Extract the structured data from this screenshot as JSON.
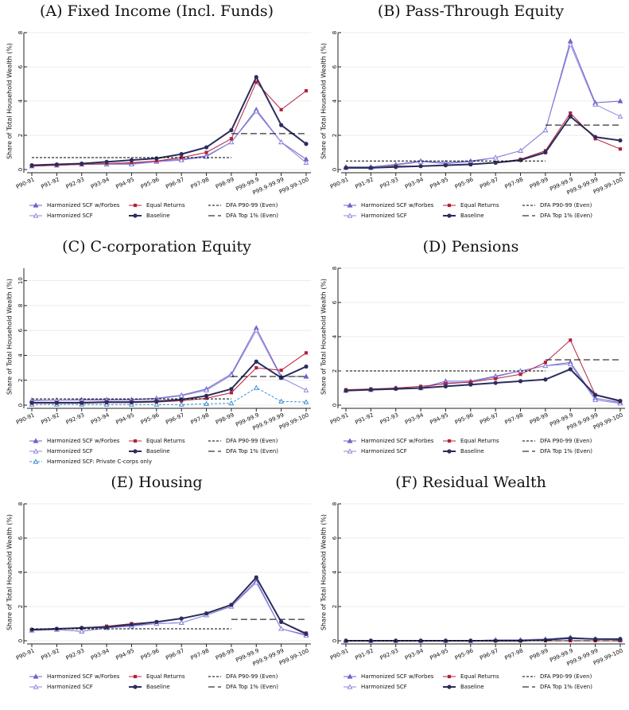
{
  "chart_data": [
    {
      "type": "line",
      "title": "(A) Fixed Income (Incl. Funds)",
      "y_label": "Share of Total Household Wealth (%)",
      "categories": [
        "P90-91",
        "P91-92",
        "P92-93",
        "P93-94",
        "P94-95",
        "P95-96",
        "P96-97",
        "P97-98",
        "P98-99",
        "P99-99.9",
        "P99.9-99.99",
        "P99.99-100"
      ],
      "ylim": [
        0,
        8
      ],
      "yticks": [
        0,
        2,
        4,
        6,
        8
      ],
      "grid": true,
      "series": [
        {
          "name": "Harmonized SCF w/Forbes",
          "color": "#6b63c9",
          "marker": "triangle",
          "values": [
            0.2,
            0.25,
            0.3,
            0.3,
            0.35,
            0.5,
            0.6,
            0.8,
            1.6,
            3.5,
            1.6,
            0.6
          ]
        },
        {
          "name": "Harmonized SCF",
          "color": "#8f86e0",
          "marker": "triangle-open",
          "values": [
            0.2,
            0.25,
            0.3,
            0.3,
            0.3,
            0.45,
            0.55,
            0.75,
            1.6,
            3.4,
            1.6,
            0.4
          ]
        },
        {
          "name": "Equal Returns",
          "color": "#b3213b",
          "marker": "square",
          "values": [
            0.2,
            0.25,
            0.3,
            0.35,
            0.4,
            0.5,
            0.7,
            1.0,
            1.8,
            5.1,
            3.5,
            4.6
          ]
        },
        {
          "name": "Baseline",
          "color": "#2b2d5c",
          "marker": "circle",
          "values": [
            0.25,
            0.3,
            0.35,
            0.45,
            0.55,
            0.65,
            0.9,
            1.3,
            2.3,
            5.4,
            2.6,
            1.5
          ]
        },
        {
          "name": "DFA P90-99 (Even)",
          "color": "#000000",
          "marker": "none",
          "dash": "3,2",
          "values": [
            0.7,
            0.7,
            0.7,
            0.7,
            0.7,
            0.7,
            0.7,
            0.7,
            0.7,
            null,
            null,
            null
          ]
        },
        {
          "name": "DFA Top 1% (Even)",
          "color": "#000000",
          "marker": "none",
          "dash": "8,4",
          "values": [
            null,
            null,
            null,
            null,
            null,
            null,
            null,
            null,
            2.1,
            2.1,
            2.1,
            2.1
          ]
        }
      ]
    },
    {
      "type": "line",
      "title": "(B) Pass-Through Equity",
      "y_label": "Share of Total Household Wealth (%)",
      "categories": [
        "P90-91",
        "P91-92",
        "P92-93",
        "P93-94",
        "P94-95",
        "P95-96",
        "P96-97",
        "P97-98",
        "P98-99",
        "P99-99.9",
        "P99.9-99.99",
        "P99.99-100"
      ],
      "ylim": [
        0,
        8
      ],
      "yticks": [
        0,
        2,
        4,
        6,
        8
      ],
      "grid": true,
      "series": [
        {
          "name": "Harmonized SCF w/Forbes",
          "color": "#6b63c9",
          "marker": "triangle",
          "values": [
            0.15,
            0.15,
            0.3,
            0.5,
            0.4,
            0.5,
            0.7,
            1.1,
            2.3,
            7.5,
            3.9,
            4.0
          ]
        },
        {
          "name": "Harmonized SCF",
          "color": "#8f86e0",
          "marker": "triangle-open",
          "values": [
            0.1,
            0.1,
            0.25,
            0.45,
            0.35,
            0.45,
            0.7,
            1.1,
            2.3,
            7.3,
            3.8,
            3.1
          ]
        },
        {
          "name": "Equal Returns",
          "color": "#b3213b",
          "marker": "square",
          "values": [
            0.1,
            0.1,
            0.2,
            0.2,
            0.25,
            0.3,
            0.4,
            0.6,
            1.1,
            3.3,
            1.8,
            1.2
          ]
        },
        {
          "name": "Baseline",
          "color": "#2b2d5c",
          "marker": "circle",
          "values": [
            0.1,
            0.1,
            0.15,
            0.2,
            0.25,
            0.3,
            0.4,
            0.55,
            1.0,
            3.1,
            1.9,
            1.7
          ]
        },
        {
          "name": "DFA P90-99 (Even)",
          "color": "#000000",
          "marker": "none",
          "dash": "3,2",
          "values": [
            0.5,
            0.5,
            0.5,
            0.5,
            0.5,
            0.5,
            0.5,
            0.5,
            0.5,
            null,
            null,
            null
          ]
        },
        {
          "name": "DFA Top 1% (Even)",
          "color": "#000000",
          "marker": "none",
          "dash": "8,4",
          "values": [
            null,
            null,
            null,
            null,
            null,
            null,
            null,
            null,
            2.6,
            2.6,
            2.6,
            2.6
          ]
        }
      ]
    },
    {
      "type": "line",
      "title": "(C) C-corporation Equity",
      "y_label": "Share of Total Household Wealth (%)",
      "categories": [
        "P90-91",
        "P91-92",
        "P92-93",
        "P93-94",
        "P94-95",
        "P95-96",
        "P96-97",
        "P97-98",
        "P98-99",
        "P99-99.9",
        "P99.9-99.99",
        "P99.99-100"
      ],
      "ylim": [
        0,
        11
      ],
      "yticks": [
        0,
        2,
        4,
        6,
        8,
        10
      ],
      "grid": true,
      "series": [
        {
          "name": "Harmonized SCF w/Forbes",
          "color": "#6b63c9",
          "marker": "triangle",
          "values": [
            0.4,
            0.4,
            0.45,
            0.45,
            0.45,
            0.55,
            0.8,
            1.3,
            2.5,
            6.2,
            2.3,
            2.3
          ]
        },
        {
          "name": "Harmonized SCF",
          "color": "#8f86e0",
          "marker": "triangle-open",
          "values": [
            0.35,
            0.4,
            0.4,
            0.4,
            0.4,
            0.5,
            0.75,
            1.2,
            2.4,
            6.0,
            2.2,
            1.2
          ]
        },
        {
          "name": "Harmonized SCF: Private C-corps only",
          "color": "#3b8fd4",
          "marker": "triangle-open",
          "dash": "3,2",
          "values": [
            0.05,
            0.05,
            0.05,
            0.05,
            0.05,
            0.05,
            0.05,
            0.1,
            0.15,
            1.4,
            0.3,
            0.25
          ]
        },
        {
          "name": "Equal Returns",
          "color": "#b3213b",
          "marker": "square",
          "values": [
            0.15,
            0.15,
            0.15,
            0.2,
            0.2,
            0.25,
            0.35,
            0.55,
            1.0,
            3.0,
            2.8,
            4.2
          ]
        },
        {
          "name": "Baseline",
          "color": "#2b2d5c",
          "marker": "circle",
          "values": [
            0.2,
            0.2,
            0.2,
            0.25,
            0.25,
            0.3,
            0.45,
            0.75,
            1.3,
            3.5,
            2.2,
            3.1
          ]
        },
        {
          "name": "DFA P90-99 (Even)",
          "color": "#000000",
          "marker": "none",
          "dash": "3,2",
          "values": [
            0.5,
            0.5,
            0.5,
            0.5,
            0.5,
            0.5,
            0.5,
            0.5,
            0.5,
            null,
            null,
            null
          ]
        },
        {
          "name": "DFA Top 1% (Even)",
          "color": "#000000",
          "marker": "none",
          "dash": "8,4",
          "values": [
            null,
            null,
            null,
            null,
            null,
            null,
            null,
            null,
            2.3,
            2.3,
            2.3,
            2.3
          ]
        }
      ]
    },
    {
      "type": "line",
      "title": "(D) Pensions",
      "y_label": "Share of Total Household Wealth (%)",
      "categories": [
        "P90-91",
        "P91-92",
        "P92-93",
        "P93-94",
        "P94-95",
        "P95-96",
        "P96-97",
        "P97-98",
        "P98-99",
        "P99-99.9",
        "P99.9-99.99",
        "P99.99-100"
      ],
      "ylim": [
        0,
        8
      ],
      "yticks": [
        0,
        2,
        4,
        6,
        8
      ],
      "grid": true,
      "series": [
        {
          "name": "Harmonized SCF w/Forbes",
          "color": "#6b63c9",
          "marker": "triangle",
          "values": [
            0.85,
            0.9,
            1.0,
            1.0,
            1.4,
            1.4,
            1.7,
            2.0,
            2.3,
            2.5,
            0.4,
            0.15
          ]
        },
        {
          "name": "Harmonized SCF",
          "color": "#8f86e0",
          "marker": "triangle-open",
          "values": [
            0.85,
            0.9,
            1.0,
            1.0,
            1.3,
            1.35,
            1.65,
            2.0,
            2.3,
            2.4,
            0.3,
            0.1
          ]
        },
        {
          "name": "Equal Returns",
          "color": "#b3213b",
          "marker": "square",
          "values": [
            0.9,
            0.95,
            1.0,
            1.1,
            1.25,
            1.35,
            1.55,
            1.8,
            2.5,
            3.8,
            0.6,
            0.2
          ]
        },
        {
          "name": "Baseline",
          "color": "#2b2d5c",
          "marker": "circle",
          "values": [
            0.85,
            0.9,
            0.95,
            1.0,
            1.1,
            1.2,
            1.3,
            1.4,
            1.5,
            2.1,
            0.6,
            0.25
          ]
        },
        {
          "name": "DFA P90-99 (Even)",
          "color": "#000000",
          "marker": "none",
          "dash": "3,2",
          "values": [
            2.0,
            2.0,
            2.0,
            2.0,
            2.0,
            2.0,
            2.0,
            2.0,
            2.0,
            null,
            null,
            null
          ]
        },
        {
          "name": "DFA Top 1% (Even)",
          "color": "#000000",
          "marker": "none",
          "dash": "8,4",
          "values": [
            null,
            null,
            null,
            null,
            null,
            null,
            null,
            null,
            2.65,
            2.65,
            2.65,
            2.65
          ]
        }
      ]
    },
    {
      "type": "line",
      "title": "(E) Housing",
      "y_label": "Share of Total Household Wealth (%)",
      "categories": [
        "P90-91",
        "P91-92",
        "P92-93",
        "P93-94",
        "P94-95",
        "P95-96",
        "P96-97",
        "P97-98",
        "P98-99",
        "P99-99.9",
        "P99.9-99.99",
        "P99.99-100"
      ],
      "ylim": [
        0,
        8
      ],
      "yticks": [
        0,
        2,
        4,
        6,
        8
      ],
      "grid": true,
      "series": [
        {
          "name": "Harmonized SCF w/Forbes",
          "color": "#6b63c9",
          "marker": "triangle",
          "values": [
            0.6,
            0.65,
            0.55,
            0.75,
            0.9,
            1.0,
            1.05,
            1.5,
            2.0,
            3.5,
            0.7,
            0.35
          ]
        },
        {
          "name": "Harmonized SCF",
          "color": "#8f86e0",
          "marker": "triangle-open",
          "values": [
            0.6,
            0.65,
            0.55,
            0.75,
            0.85,
            1.0,
            1.05,
            1.5,
            2.0,
            3.4,
            0.7,
            0.3
          ]
        },
        {
          "name": "Equal Returns",
          "color": "#b3213b",
          "marker": "square",
          "values": [
            0.65,
            0.7,
            0.75,
            0.85,
            1.0,
            1.1,
            1.3,
            1.6,
            2.1,
            3.7,
            1.1,
            0.45
          ]
        },
        {
          "name": "Baseline",
          "color": "#2b2d5c",
          "marker": "circle",
          "values": [
            0.65,
            0.7,
            0.75,
            0.8,
            0.95,
            1.1,
            1.3,
            1.6,
            2.1,
            3.7,
            1.1,
            0.4
          ]
        },
        {
          "name": "DFA P90-99 (Even)",
          "color": "#000000",
          "marker": "none",
          "dash": "3,2",
          "values": [
            0.7,
            0.7,
            0.7,
            0.7,
            0.7,
            0.7,
            0.7,
            0.7,
            0.7,
            null,
            null,
            null
          ]
        },
        {
          "name": "DFA Top 1% (Even)",
          "color": "#000000",
          "marker": "none",
          "dash": "8,4",
          "values": [
            null,
            null,
            null,
            null,
            null,
            null,
            null,
            null,
            1.25,
            1.25,
            1.25,
            1.25
          ]
        }
      ]
    },
    {
      "type": "line",
      "title": "(F) Residual Wealth",
      "y_label": "Share of Total Household Wealth (%)",
      "categories": [
        "P90-91",
        "P91-92",
        "P92-93",
        "P93-94",
        "P94-95",
        "P95-96",
        "P96-97",
        "P97-98",
        "P98-99",
        "P99-99.9",
        "P99.9-99.99",
        "P99.99-100"
      ],
      "ylim": [
        0,
        8
      ],
      "yticks": [
        0,
        2,
        4,
        6,
        8
      ],
      "grid": true,
      "series": [
        {
          "name": "Harmonized SCF w/Forbes",
          "color": "#6b63c9",
          "marker": "triangle",
          "values": [
            0,
            0,
            0,
            0,
            0,
            0,
            0.05,
            0.05,
            0.1,
            0.2,
            0.1,
            0.1
          ]
        },
        {
          "name": "Harmonized SCF",
          "color": "#8f86e0",
          "marker": "triangle-open",
          "values": [
            0,
            0,
            0,
            0,
            0,
            0,
            0.05,
            0.05,
            0.1,
            0.15,
            0.1,
            0.05
          ]
        },
        {
          "name": "Equal Returns",
          "color": "#b3213b",
          "marker": "square",
          "values": [
            0,
            0,
            0,
            0,
            0,
            0,
            0,
            0,
            0,
            0,
            0,
            0
          ]
        },
        {
          "name": "Baseline",
          "color": "#2b2d5c",
          "marker": "circle",
          "values": [
            0,
            0,
            0,
            0,
            0,
            0,
            0,
            0,
            0.05,
            0.15,
            0.1,
            0.1
          ]
        },
        {
          "name": "DFA P90-99 (Even)",
          "color": "#000000",
          "marker": "none",
          "dash": "3,2",
          "values": [
            0,
            0,
            0,
            0,
            0,
            0,
            0,
            0,
            0,
            null,
            null,
            null
          ]
        },
        {
          "name": "DFA Top 1% (Even)",
          "color": "#000000",
          "marker": "none",
          "dash": "8,4",
          "values": [
            null,
            null,
            null,
            null,
            null,
            null,
            null,
            null,
            0,
            0,
            0,
            0
          ]
        }
      ]
    }
  ]
}
